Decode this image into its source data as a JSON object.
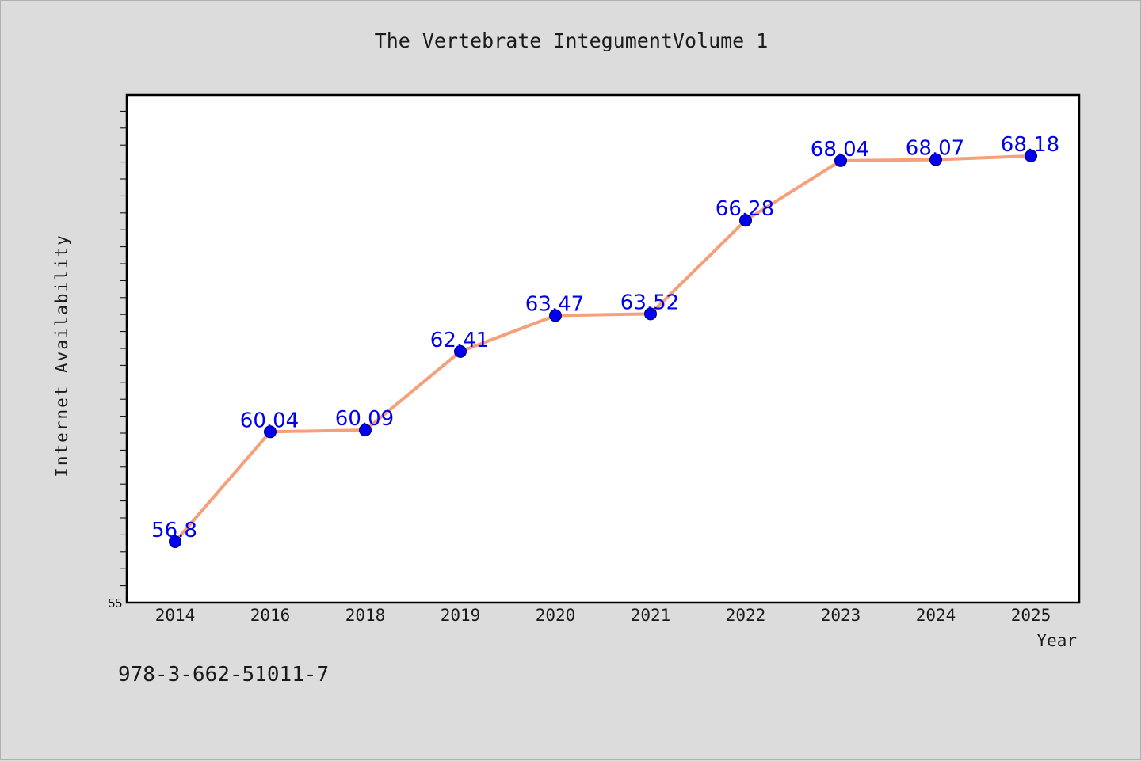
{
  "chart_data": {
    "type": "line",
    "title": "The Vertebrate IntegumentVolume 1",
    "xlabel": "Year",
    "ylabel": "Internet Availability",
    "categories": [
      "2014",
      "2016",
      "2018",
      "2019",
      "2020",
      "2021",
      "2022",
      "2023",
      "2024",
      "2025"
    ],
    "series": [
      {
        "values": [
          56.8,
          60.04,
          60.09,
          62.41,
          63.47,
          63.52,
          66.28,
          68.04,
          68.07,
          68.18
        ],
        "labels": [
          "56.8",
          "60.04",
          "60.09",
          "62.41",
          "63.47",
          "63.52",
          "66.28",
          "68.04",
          "68.07",
          "68.18"
        ]
      }
    ],
    "ylim": [
      55,
      70
    ],
    "y_tick_labels": [
      "55"
    ],
    "grid": false,
    "line_color": "#f5a07a",
    "marker_color": "#0000ee",
    "label_color": "#0000ee"
  },
  "footer": {
    "isbn": "978-3-662-51011-7"
  }
}
